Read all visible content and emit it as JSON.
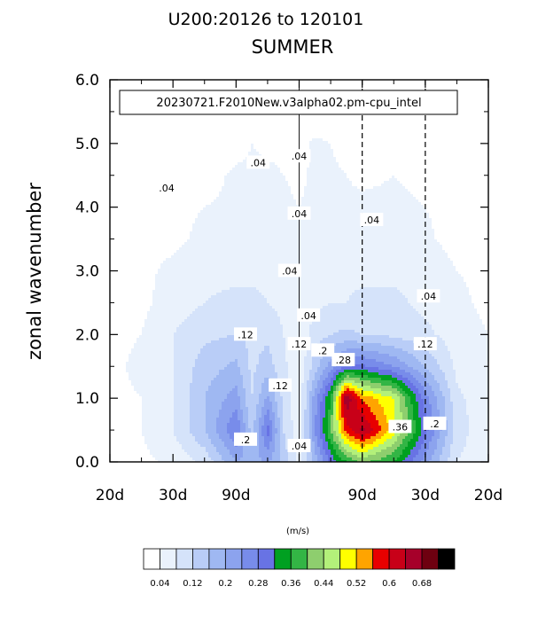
{
  "title": "U200:20126 to 120101",
  "subtitle": "SUMMER",
  "units": "(m/s)",
  "case_label": "20230721.F2010New.v3alpha02.pm-cpu_intel",
  "chart_data": {
    "type": "heatmap",
    "ylabel": "zonal wavenumber",
    "xlabel": "",
    "ylim": [
      0,
      6
    ],
    "yticks": [
      "0.0",
      "1.0",
      "2.0",
      "3.0",
      "4.0",
      "5.0",
      "6.0"
    ],
    "xtick_labels": [
      "20d",
      "30d",
      "90d",
      "",
      "90d",
      "30d",
      "20d"
    ],
    "x": [
      -6,
      -5,
      -4,
      -3,
      -2,
      -1.5,
      -1,
      -0.5,
      0,
      0.5,
      1,
      1.5,
      2,
      3,
      4,
      5,
      6
    ],
    "y": [
      0,
      0.5,
      1,
      1.5,
      2,
      2.5,
      3,
      3.5,
      4,
      4.5,
      5,
      5.5,
      6
    ],
    "values": [
      [
        0.03,
        0.03,
        0.05,
        0.09,
        0.2,
        0.18,
        0.21,
        0.15,
        0.06,
        0.18,
        0.29,
        0.36,
        0.41,
        0.36,
        0.22,
        0.08,
        0.05
      ],
      [
        0.03,
        0.04,
        0.08,
        0.16,
        0.28,
        0.14,
        0.3,
        0.12,
        0.05,
        0.24,
        0.4,
        0.58,
        0.65,
        0.5,
        0.3,
        0.1,
        0.05
      ],
      [
        0.03,
        0.04,
        0.08,
        0.16,
        0.22,
        0.12,
        0.21,
        0.11,
        0.05,
        0.22,
        0.36,
        0.68,
        0.55,
        0.48,
        0.26,
        0.09,
        0.05
      ],
      [
        0.03,
        0.05,
        0.08,
        0.14,
        0.17,
        0.11,
        0.14,
        0.09,
        0.05,
        0.14,
        0.22,
        0.28,
        0.29,
        0.24,
        0.16,
        0.07,
        0.04
      ],
      [
        0.03,
        0.04,
        0.08,
        0.11,
        0.12,
        0.11,
        0.11,
        0.08,
        0.05,
        0.1,
        0.12,
        0.13,
        0.12,
        0.11,
        0.09,
        0.06,
        0.04
      ],
      [
        0.03,
        0.03,
        0.06,
        0.08,
        0.09,
        0.09,
        0.08,
        0.07,
        0.05,
        0.07,
        0.08,
        0.08,
        0.09,
        0.09,
        0.07,
        0.05,
        0.03
      ],
      [
        0.03,
        0.03,
        0.05,
        0.07,
        0.07,
        0.07,
        0.07,
        0.06,
        0.05,
        0.06,
        0.07,
        0.07,
        0.07,
        0.07,
        0.06,
        0.04,
        0.03
      ],
      [
        0.03,
        0.03,
        0.03,
        0.05,
        0.05,
        0.05,
        0.05,
        0.05,
        0.04,
        0.05,
        0.05,
        0.05,
        0.05,
        0.05,
        0.045,
        0.03,
        0.03
      ],
      [
        0.03,
        0.02,
        0.03,
        0.04,
        0.045,
        0.045,
        0.045,
        0.045,
        0.04,
        0.045,
        0.05,
        0.045,
        0.045,
        0.045,
        0.04,
        0.03,
        0.03
      ],
      [
        0.03,
        0.02,
        0.02,
        0.03,
        0.045,
        0.045,
        0.045,
        0.04,
        0.035,
        0.045,
        0.045,
        0.04,
        0.035,
        0.04,
        0.035,
        0.02,
        0.02
      ],
      [
        0.02,
        0.02,
        0.02,
        0.02,
        0.03,
        0.04,
        0.035,
        0.035,
        0.03,
        0.045,
        0.04,
        0.03,
        0.025,
        0.03,
        0.025,
        0.02,
        0.02
      ],
      [
        0.02,
        0.02,
        0.02,
        0.02,
        0.02,
        0.02,
        0.02,
        0.02,
        0.02,
        0.02,
        0.02,
        0.02,
        0.02,
        0.02,
        0.02,
        0.02,
        0.02
      ],
      [
        0.02,
        0.02,
        0.02,
        0.02,
        0.02,
        0.02,
        0.02,
        0.02,
        0.02,
        0.02,
        0.02,
        0.02,
        0.02,
        0.02,
        0.02,
        0.02,
        0.02
      ]
    ],
    "levels": [
      0.04,
      0.08,
      0.12,
      0.16,
      0.2,
      0.24,
      0.28,
      0.32,
      0.36,
      0.4,
      0.44,
      0.48,
      0.52,
      0.56,
      0.6,
      0.64,
      0.68
    ],
    "colors": [
      "#ffffff",
      "#eaf2fc",
      "#d5e3fa",
      "#b9cdf7",
      "#9fb8f2",
      "#8ca3ee",
      "#788cea",
      "#6873e4",
      "#00a021",
      "#33b545",
      "#8ece6e",
      "#b3f07a",
      "#ffff00",
      "#ffa400",
      "#e80000",
      "#c80018",
      "#a6002a",
      "#6e0010",
      "#000000"
    ],
    "colorbar_labels": [
      "0.04",
      "0.12",
      "0.2",
      "0.28",
      "0.36",
      "0.44",
      "0.52",
      "0.6",
      "0.68"
    ],
    "contour_labels": [
      ".04",
      ".04",
      ".04",
      ".04",
      ".04",
      ".04",
      ".04",
      ".04",
      ".04",
      ".12",
      ".12",
      ".12",
      ".12",
      ".2",
      ".2",
      ".2",
      ".28",
      ".36"
    ],
    "reference_lines": [
      "90d",
      "90d",
      "30d"
    ]
  }
}
